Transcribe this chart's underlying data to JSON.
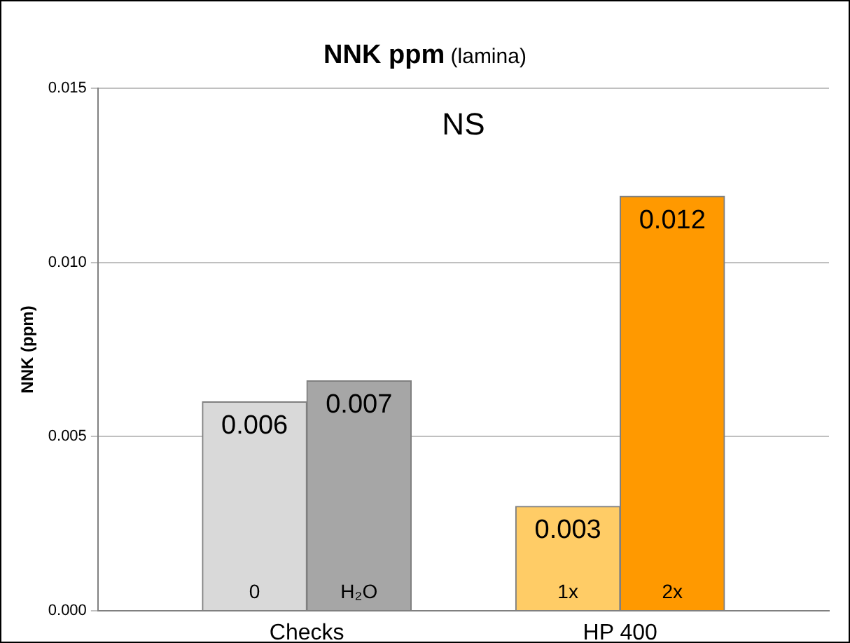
{
  "chart_data": {
    "type": "bar",
    "title": "NNK ppm",
    "subtitle": "(lamina)",
    "ylabel": "NNK (ppm)",
    "categories": [
      null,
      "0",
      "H₂O",
      null,
      "1x",
      "2x",
      null
    ],
    "values": [
      null,
      0.006,
      0.0066,
      null,
      0.003,
      0.0119,
      null
    ],
    "colors": [
      "#d9d9d9",
      "#d9d9d9",
      "#a6a6a6",
      "#d9d9d9",
      "#ffcc66",
      "#ff9900",
      "#d9d9d9"
    ],
    "value_labels": [
      null,
      "0.006",
      "0.007",
      null,
      "0.003",
      "0.012",
      null
    ],
    "ylim": [
      0,
      0.015
    ],
    "yticks": [
      {
        "value": 0,
        "label": "0.000"
      },
      {
        "value": 0.005,
        "label": "0.005"
      },
      {
        "value": 0.01,
        "label": "0.010"
      },
      {
        "value": 0.015,
        "label": "0.015"
      }
    ],
    "grid": "y",
    "legend": false,
    "annotations": [
      "NS",
      "Checks",
      "HP 400"
    ]
  }
}
